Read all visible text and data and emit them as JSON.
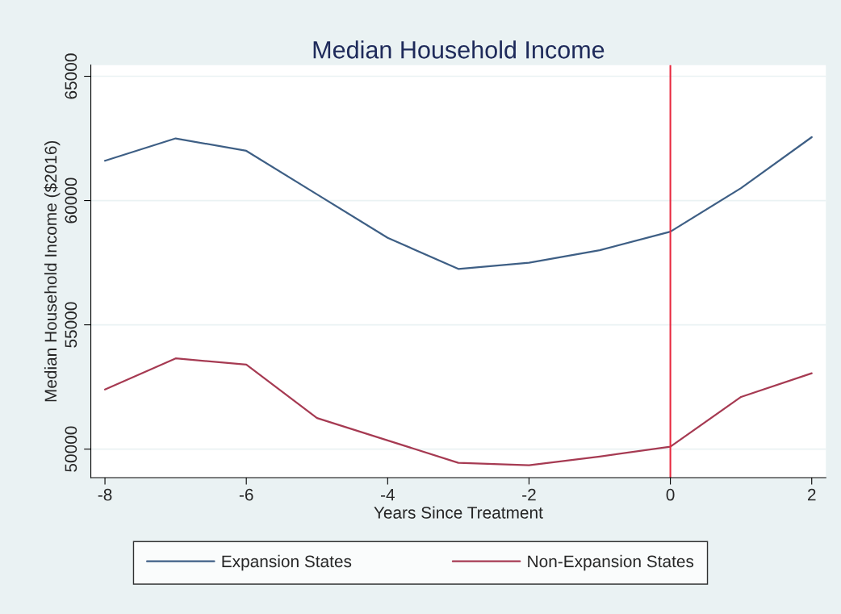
{
  "chart_data": {
    "type": "line",
    "title": "Median Household Income",
    "xlabel": "Years Since Treatment",
    "ylabel": "Median Household Income ($2016)",
    "x": [
      -8,
      -7,
      -6,
      -5,
      -4,
      -3,
      -2,
      -1,
      0,
      1,
      2
    ],
    "series": [
      {
        "name": "Expansion States",
        "color": "#3e5f85",
        "values": [
          61600,
          62500,
          62000,
          60250,
          58500,
          57250,
          57500,
          58000,
          58750,
          60500,
          62550
        ]
      },
      {
        "name": "Non-Expansion States",
        "color": "#a63a52",
        "values": [
          52400,
          53650,
          53400,
          51250,
          50350,
          49450,
          49350,
          49700,
          50100,
          52100,
          53050
        ]
      }
    ],
    "xlim": [
      -8.2,
      2.2
    ],
    "xticks": [
      -8,
      -6,
      -4,
      -2,
      0,
      2
    ],
    "ylim": [
      48850,
      65450
    ],
    "yticks": [
      50000,
      55000,
      60000,
      65000
    ],
    "ref_lines": [
      {
        "axis": "x",
        "value": 0,
        "color": "#e8293f"
      }
    ],
    "grid": "y",
    "legend": "bottom"
  }
}
